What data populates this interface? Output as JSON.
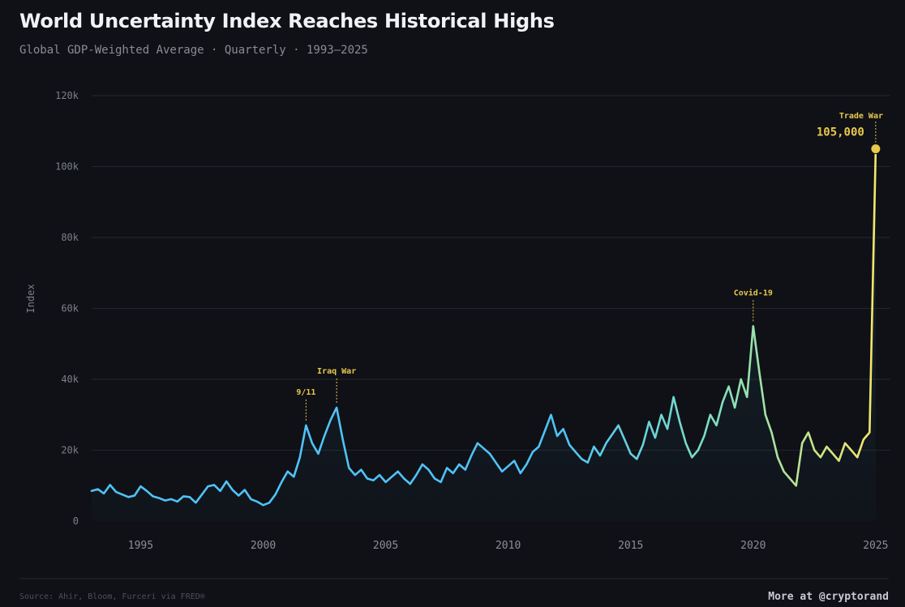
{
  "header": {
    "title": "World Uncertainty Index Reaches Historical Highs",
    "subtitle": "Global GDP-Weighted Average · Quarterly · 1993–2025"
  },
  "footer": {
    "source": "Source: Ahir, Bloom, Furceri via FRED®",
    "credit": "More at @cryptorand"
  },
  "colors": {
    "background": "#0f1117",
    "line_start": "#4fc3f7",
    "line_mid": "#7fe0c0",
    "line_end": "#f4e66a",
    "annotation": "#e9c84a",
    "grid": "#24262e"
  },
  "chart_data": {
    "type": "line",
    "title": "World Uncertainty Index Reaches Historical Highs",
    "subtitle": "Global GDP-Weighted Average · Quarterly · 1993–2025",
    "xlabel": "",
    "ylabel": "Index",
    "xlim": [
      1993,
      2025.6
    ],
    "ylim": [
      0,
      120000
    ],
    "x_ticks": [
      1995,
      2000,
      2005,
      2010,
      2015,
      2020,
      2025
    ],
    "y_ticks": [
      0,
      20000,
      40000,
      60000,
      80000,
      100000,
      120000
    ],
    "y_tick_labels": [
      "0",
      "20k",
      "40k",
      "60k",
      "80k",
      "100k",
      "120k"
    ],
    "grid": true,
    "series": [
      {
        "x": [
          1993.0,
          1993.25,
          1993.5,
          1993.75,
          1994.0,
          1994.25,
          1994.5,
          1994.75,
          1995.0,
          1995.25,
          1995.5,
          1995.75,
          1996.0,
          1996.25,
          1996.5,
          1996.75,
          1997.0,
          1997.25,
          1997.5,
          1997.75,
          1998.0,
          1998.25,
          1998.5,
          1998.75,
          1999.0,
          1999.25,
          1999.5,
          1999.75,
          2000.0,
          2000.25,
          2000.5,
          2000.75,
          2001.0,
          2001.25,
          2001.5,
          2001.75,
          2002.0,
          2002.25,
          2002.5,
          2002.75,
          2003.0,
          2003.25,
          2003.5,
          2003.75,
          2004.0,
          2004.25,
          2004.5,
          2004.75,
          2005.0,
          2005.25,
          2005.5,
          2005.75,
          2006.0,
          2006.25,
          2006.5,
          2006.75,
          2007.0,
          2007.25,
          2007.5,
          2007.75,
          2008.0,
          2008.25,
          2008.5,
          2008.75,
          2009.0,
          2009.25,
          2009.5,
          2009.75,
          2010.0,
          2010.25,
          2010.5,
          2010.75,
          2011.0,
          2011.25,
          2011.5,
          2011.75,
          2012.0,
          2012.25,
          2012.5,
          2012.75,
          2013.0,
          2013.25,
          2013.5,
          2013.75,
          2014.0,
          2014.25,
          2014.5,
          2014.75,
          2015.0,
          2015.25,
          2015.5,
          2015.75,
          2016.0,
          2016.25,
          2016.5,
          2016.75,
          2017.0,
          2017.25,
          2017.5,
          2017.75,
          2018.0,
          2018.25,
          2018.5,
          2018.75,
          2019.0,
          2019.25,
          2019.5,
          2019.75,
          2020.0,
          2020.25,
          2020.5,
          2020.75,
          2021.0,
          2021.25,
          2021.5,
          2021.75,
          2022.0,
          2022.25,
          2022.5,
          2022.75,
          2023.0,
          2023.25,
          2023.5,
          2023.75,
          2024.0,
          2024.25,
          2024.5,
          2024.75,
          2025.0
        ],
        "values": [
          8500,
          9000,
          7800,
          10200,
          8200,
          7500,
          6800,
          7200,
          9800,
          8500,
          7000,
          6500,
          5800,
          6200,
          5500,
          7000,
          6800,
          5200,
          7500,
          9800,
          10200,
          8500,
          11200,
          8800,
          7200,
          8800,
          6200,
          5500,
          4500,
          5200,
          7500,
          11000,
          14000,
          12500,
          18000,
          27000,
          22000,
          19000,
          24000,
          28500,
          32000,
          23000,
          15000,
          13000,
          14500,
          12000,
          11500,
          13000,
          11000,
          12500,
          14000,
          12000,
          10500,
          13000,
          16000,
          14500,
          12000,
          11000,
          15000,
          13500,
          16000,
          14500,
          18500,
          22000,
          20500,
          19000,
          16500,
          14000,
          15500,
          17000,
          13500,
          16000,
          19500,
          21000,
          25500,
          30000,
          24000,
          26000,
          21500,
          19500,
          17500,
          16500,
          21000,
          18500,
          22000,
          24500,
          27000,
          23000,
          19000,
          17500,
          21500,
          28000,
          23500,
          30000,
          26000,
          35000,
          28000,
          22000,
          18000,
          20000,
          24000,
          30000,
          27000,
          33500,
          38000,
          32000,
          40000,
          35000,
          55000,
          42000,
          30000,
          25000,
          18000,
          14000,
          12000,
          10000,
          22000,
          25000,
          20000,
          18000,
          21000,
          19000,
          17000,
          22000,
          20000,
          18000,
          23000,
          25000,
          105000
        ]
      }
    ],
    "annotations": [
      {
        "label": "9/11",
        "x": 2001.75,
        "y": 27000
      },
      {
        "label": "Iraq War",
        "x": 2003.0,
        "y": 32000
      },
      {
        "label": "Covid-19",
        "x": 2020.0,
        "y": 55000
      },
      {
        "label": "Trade War",
        "x": 2025.0,
        "y": 105000,
        "value_label": "105,000"
      }
    ]
  }
}
